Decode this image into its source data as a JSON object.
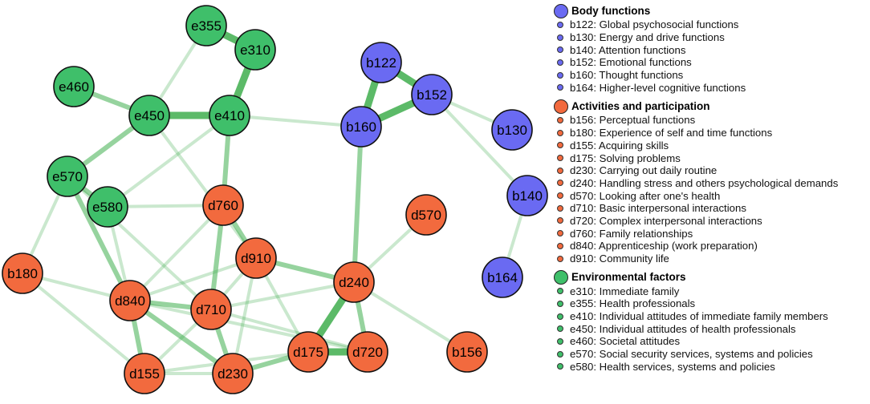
{
  "colors": {
    "body": "#6a6af2",
    "activities": "#f26a3e",
    "environment": "#3fbf6a",
    "edge": "#3fae4e"
  },
  "groups": [
    {
      "title": "Body functions",
      "color": "#6a6af2",
      "items": [
        "b122: Global psychosocial functions",
        "b130: Energy and drive functions",
        "b140: Attention functions",
        "b152: Emotional functions",
        "b160: Thought functions",
        "b164: Higher-level cognitive functions"
      ]
    },
    {
      "title": "Activities and participation",
      "color": "#f26a3e",
      "items": [
        "b156: Perceptual functions",
        "b180: Experience of self and time functions",
        "d155: Acquiring skills",
        "d175: Solving problems",
        "d230: Carrying out daily routine",
        "d240: Handling stress and others psychological demands",
        "d570: Looking after one's health",
        "d710: Basic interpersonal interactions",
        "d720: Complex interpersonal interactions",
        "d760: Family relationships",
        "d840: Apprenticeship (work preparation)",
        "d910: Community life"
      ]
    },
    {
      "title": "Environmental factors",
      "color": "#3fbf6a",
      "items": [
        "e310: Immediate family",
        "e355: Health professionals",
        "e410: Individual attitudes of immediate family members",
        "e450: Individual attitudes of health professionals",
        "e460: Societal attitudes",
        "e570: Social security services, systems and policies",
        "e580: Health services, systems and policies"
      ]
    }
  ],
  "nodes": [
    {
      "id": "e355",
      "group": "environment"
    },
    {
      "id": "e310",
      "group": "environment"
    },
    {
      "id": "e460",
      "group": "environment"
    },
    {
      "id": "e450",
      "group": "environment"
    },
    {
      "id": "e410",
      "group": "environment"
    },
    {
      "id": "e570",
      "group": "environment"
    },
    {
      "id": "e580",
      "group": "environment"
    },
    {
      "id": "b122",
      "group": "body"
    },
    {
      "id": "b152",
      "group": "body"
    },
    {
      "id": "b160",
      "group": "body"
    },
    {
      "id": "b130",
      "group": "body"
    },
    {
      "id": "b140",
      "group": "body"
    },
    {
      "id": "b164",
      "group": "body"
    },
    {
      "id": "d760",
      "group": "activities"
    },
    {
      "id": "d570",
      "group": "activities"
    },
    {
      "id": "d910",
      "group": "activities"
    },
    {
      "id": "d240",
      "group": "activities"
    },
    {
      "id": "b180",
      "group": "activities"
    },
    {
      "id": "d840",
      "group": "activities"
    },
    {
      "id": "d710",
      "group": "activities"
    },
    {
      "id": "d175",
      "group": "activities"
    },
    {
      "id": "d720",
      "group": "activities"
    },
    {
      "id": "b156",
      "group": "activities"
    },
    {
      "id": "d155",
      "group": "activities"
    },
    {
      "id": "d230",
      "group": "activities"
    }
  ],
  "edges": [
    [
      "e355",
      "e310",
      "strong"
    ],
    [
      "e310",
      "e410",
      "strong"
    ],
    [
      "e410",
      "e450",
      "strong"
    ],
    [
      "e460",
      "e450",
      "medium"
    ],
    [
      "e450",
      "e570",
      "medium"
    ],
    [
      "e570",
      "e580",
      "medium"
    ],
    [
      "e355",
      "e450",
      "weak"
    ],
    [
      "e410",
      "b160",
      "weak"
    ],
    [
      "e410",
      "d760",
      "medium"
    ],
    [
      "e410",
      "e580",
      "weak"
    ],
    [
      "e450",
      "d910",
      "weak"
    ],
    [
      "b122",
      "b152",
      "strong"
    ],
    [
      "b122",
      "b160",
      "strong"
    ],
    [
      "b152",
      "b160",
      "strong"
    ],
    [
      "b152",
      "b130",
      "weak"
    ],
    [
      "b152",
      "b140",
      "weak"
    ],
    [
      "b140",
      "b164",
      "weak"
    ],
    [
      "b160",
      "d240",
      "medium"
    ],
    [
      "d760",
      "d910",
      "medium"
    ],
    [
      "d760",
      "d710",
      "medium"
    ],
    [
      "d760",
      "d840",
      "weak"
    ],
    [
      "d910",
      "d240",
      "medium"
    ],
    [
      "d910",
      "d840",
      "weak"
    ],
    [
      "d910",
      "d710",
      "weak"
    ],
    [
      "d910",
      "d175",
      "weak"
    ],
    [
      "d910",
      "d230",
      "weak"
    ],
    [
      "d240",
      "d175",
      "strong"
    ],
    [
      "d240",
      "d720",
      "medium"
    ],
    [
      "d240",
      "d570",
      "weak"
    ],
    [
      "d240",
      "d710",
      "weak"
    ],
    [
      "d240",
      "b156",
      "weak"
    ],
    [
      "d840",
      "d710",
      "medium"
    ],
    [
      "d840",
      "d155",
      "medium"
    ],
    [
      "d840",
      "d230",
      "medium"
    ],
    [
      "d840",
      "b180",
      "weak"
    ],
    [
      "d840",
      "d720",
      "weak"
    ],
    [
      "d840",
      "e580",
      "weak"
    ],
    [
      "d710",
      "d230",
      "medium"
    ],
    [
      "d710",
      "d155",
      "weak"
    ],
    [
      "d710",
      "d720",
      "weak"
    ],
    [
      "d175",
      "d720",
      "strong"
    ],
    [
      "d175",
      "d230",
      "medium"
    ],
    [
      "d175",
      "d155",
      "weak"
    ],
    [
      "d230",
      "d155",
      "weak"
    ],
    [
      "e570",
      "b180",
      "weak"
    ],
    [
      "e570",
      "d840",
      "medium"
    ],
    [
      "e570",
      "d710",
      "weak"
    ],
    [
      "e580",
      "d760",
      "weak"
    ],
    [
      "b180",
      "d155",
      "weak"
    ]
  ]
}
